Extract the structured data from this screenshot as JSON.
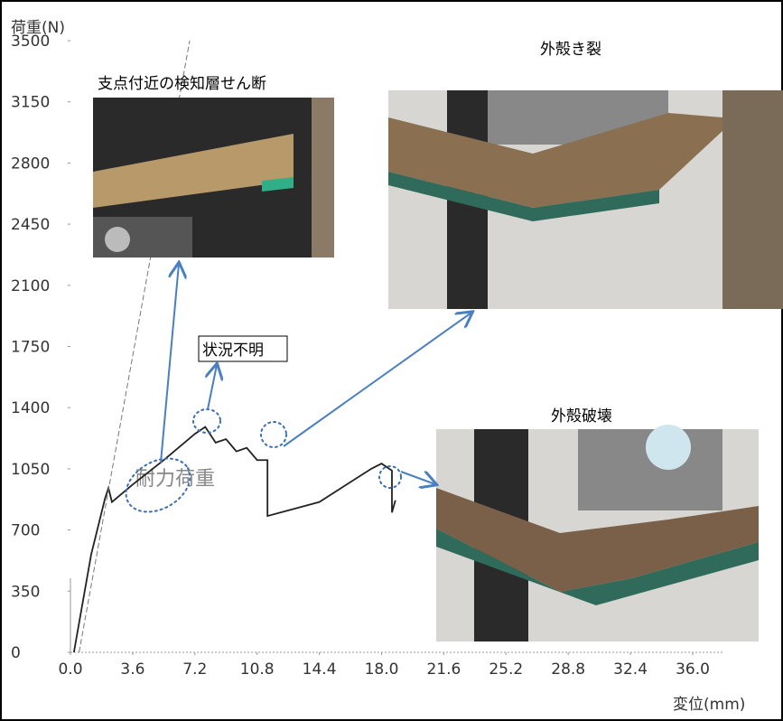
{
  "chart_data": {
    "type": "line",
    "ylabel": "荷重(N)",
    "xlabel": "変位(mm)",
    "annotations": [
      "耐力荷重",
      "支点付近の検知層せん断",
      "状況不明",
      "外殻き裂",
      "外殻破壊"
    ],
    "series": [
      {
        "color": "#222222",
        "x": [
          0.2,
          1.2,
          2.0,
          2.2,
          2.4,
          3.6,
          5.4,
          7.2,
          7.8,
          8.4,
          9.0,
          9.6,
          10.2,
          10.8,
          11.4,
          11.4,
          14.4,
          17.4,
          18.0,
          18.6,
          18.6,
          18.8
        ],
        "values": [
          0,
          560,
          880,
          940,
          860,
          960,
          1100,
          1250,
          1290,
          1200,
          1220,
          1150,
          1170,
          1100,
          1100,
          780,
          860,
          1050,
          1080,
          1040,
          800,
          870
        ]
      },
      {
        "color": "#777777",
        "x": [
          0.5,
          6.9
        ],
        "values": [
          0,
          3500
        ]
      }
    ],
    "xlim": [
      0,
      36
    ],
    "ylim": [
      0,
      3500
    ],
    "xticks": [
      {
        "value": 0,
        "label": "0.0"
      },
      3.6,
      7.2,
      10.8,
      14.4,
      {
        "value": 18,
        "label": "18.0"
      },
      21.6,
      25.2,
      28.8,
      32.4,
      {
        "value": 36,
        "label": "36.0"
      }
    ],
    "yticks": [
      0,
      350,
      700,
      1050,
      1400,
      1750,
      2100,
      2450,
      2800,
      3150,
      3500
    ]
  }
}
